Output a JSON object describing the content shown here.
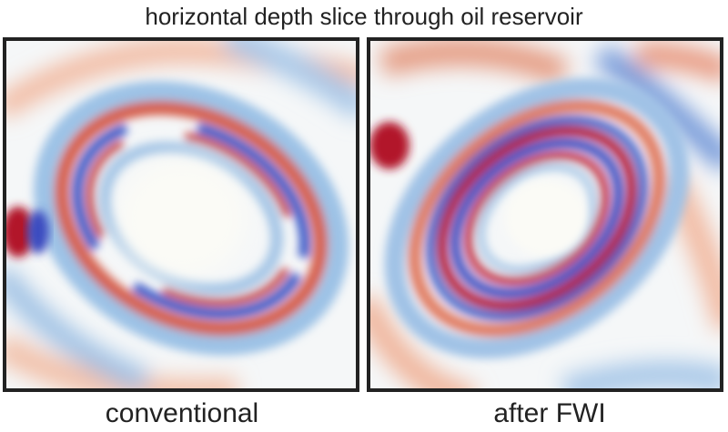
{
  "title": "horizontal depth slice through oil reservoir",
  "panels": [
    {
      "caption": "conventional"
    },
    {
      "caption": "after FWI"
    }
  ]
}
